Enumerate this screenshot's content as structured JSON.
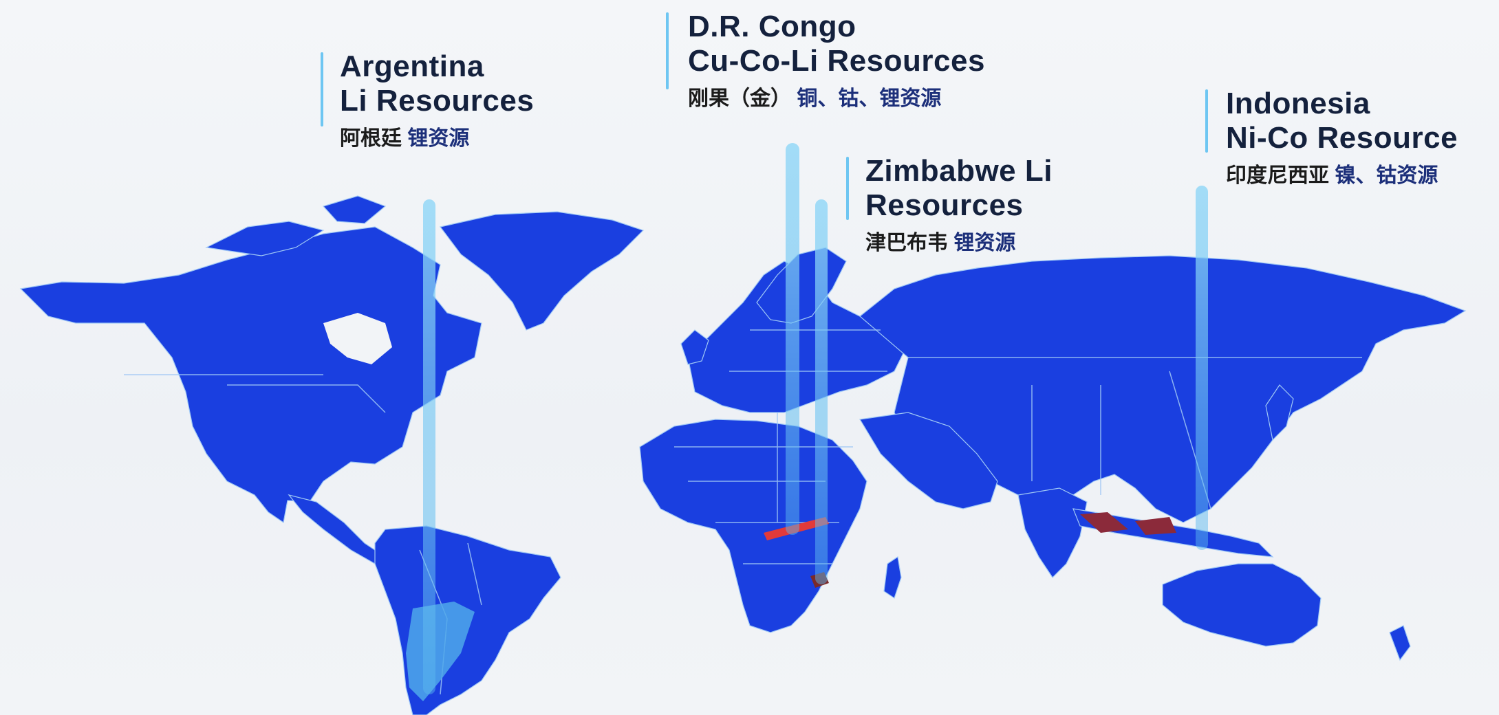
{
  "colors": {
    "land": "#1a3fe0",
    "land_edge": "#0d2bb5",
    "border": "#9fc8f5",
    "beam": "#6ec6f2",
    "highlight": "#e23a3a",
    "text": "#14213d",
    "background": "#f2f4f7"
  },
  "callouts": [
    {
      "id": "argentina",
      "en_line1": "Argentina",
      "en_line2": "Li Resources",
      "cn_country": "阿根廷",
      "cn_resource": "锂资源"
    },
    {
      "id": "drcongo",
      "en_line1": "D.R. Congo",
      "en_line2": "Cu-Co-Li Resources",
      "cn_country": "刚果（金）",
      "cn_resource": "铜、钴、锂资源"
    },
    {
      "id": "zimbabwe",
      "en_line1": "Zimbabwe Li",
      "en_line2": "Resources",
      "cn_country": "津巴布韦",
      "cn_resource": "锂资源"
    },
    {
      "id": "indonesia",
      "en_line1": "Indonesia",
      "en_line2": "Ni-Co Resource",
      "cn_country": "印度尼西亚",
      "cn_resource": "镍、钴资源"
    }
  ],
  "highlighted_countries": [
    "Argentina",
    "D.R. Congo",
    "Zimbabwe",
    "Indonesia"
  ]
}
